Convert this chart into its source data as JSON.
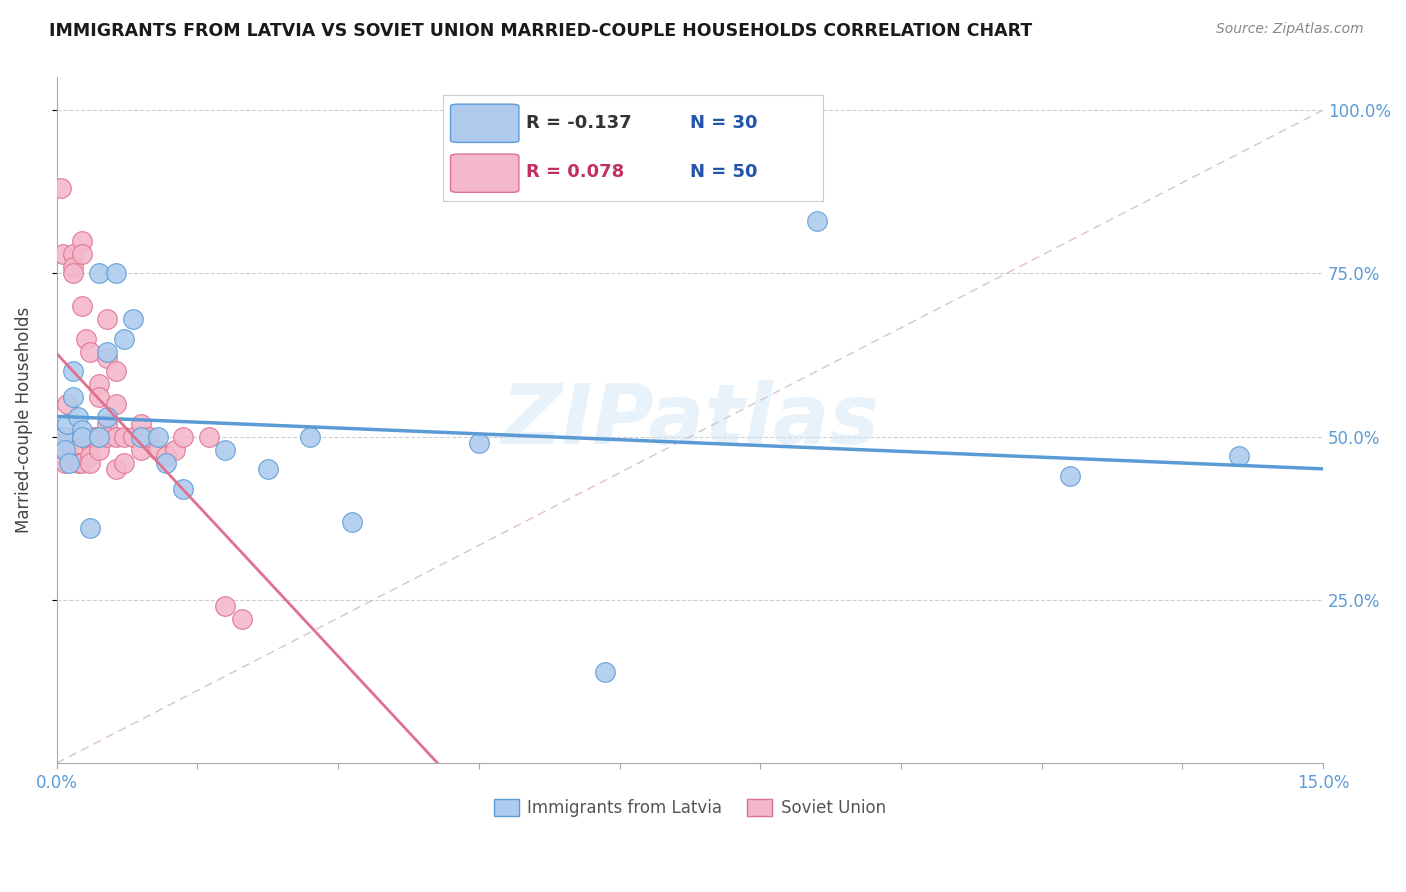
{
  "title": "IMMIGRANTS FROM LATVIA VS SOVIET UNION MARRIED-COUPLE HOUSEHOLDS CORRELATION CHART",
  "source": "Source: ZipAtlas.com",
  "ylabel_label": "Married-couple Households",
  "ytick_labels": [
    "25.0%",
    "50.0%",
    "75.0%",
    "100.0%"
  ],
  "ytick_values": [
    0.25,
    0.5,
    0.75,
    1.0
  ],
  "xlim": [
    0.0,
    0.15
  ],
  "ylim": [
    0.0,
    1.05
  ],
  "watermark": "ZIPatlas",
  "latvia_R": -0.137,
  "latvia_N": 30,
  "soviet_R": 0.078,
  "soviet_N": 50,
  "latvia_color": "#aecbee",
  "latvia_edge_color": "#5b9bd5",
  "soviet_color": "#f4b8cb",
  "soviet_edge_color": "#e07090",
  "diagonal_color": "#d8bcc8",
  "latvia_x": [
    0.0008,
    0.001,
    0.0012,
    0.0015,
    0.002,
    0.002,
    0.0025,
    0.003,
    0.003,
    0.004,
    0.005,
    0.005,
    0.006,
    0.006,
    0.007,
    0.008,
    0.009,
    0.01,
    0.012,
    0.013,
    0.015,
    0.02,
    0.025,
    0.03,
    0.035,
    0.05,
    0.065,
    0.09,
    0.12,
    0.14
  ],
  "latvia_y": [
    0.5,
    0.48,
    0.52,
    0.46,
    0.56,
    0.6,
    0.53,
    0.51,
    0.5,
    0.36,
    0.75,
    0.5,
    0.53,
    0.63,
    0.75,
    0.65,
    0.68,
    0.5,
    0.5,
    0.46,
    0.42,
    0.48,
    0.45,
    0.5,
    0.37,
    0.49,
    0.14,
    0.83,
    0.44,
    0.47
  ],
  "soviet_x": [
    0.0005,
    0.0006,
    0.0008,
    0.001,
    0.001,
    0.001,
    0.0012,
    0.0015,
    0.0015,
    0.002,
    0.002,
    0.002,
    0.002,
    0.0025,
    0.003,
    0.003,
    0.003,
    0.003,
    0.0035,
    0.004,
    0.004,
    0.004,
    0.004,
    0.004,
    0.0045,
    0.005,
    0.005,
    0.005,
    0.005,
    0.006,
    0.006,
    0.006,
    0.006,
    0.007,
    0.007,
    0.007,
    0.007,
    0.008,
    0.008,
    0.009,
    0.01,
    0.01,
    0.011,
    0.012,
    0.013,
    0.014,
    0.015,
    0.018,
    0.02,
    0.022
  ],
  "soviet_y": [
    0.88,
    0.5,
    0.78,
    0.48,
    0.47,
    0.46,
    0.55,
    0.5,
    0.49,
    0.78,
    0.76,
    0.75,
    0.48,
    0.46,
    0.8,
    0.78,
    0.7,
    0.46,
    0.65,
    0.63,
    0.5,
    0.49,
    0.47,
    0.46,
    0.5,
    0.58,
    0.56,
    0.5,
    0.48,
    0.68,
    0.62,
    0.52,
    0.5,
    0.6,
    0.55,
    0.5,
    0.45,
    0.5,
    0.46,
    0.5,
    0.52,
    0.48,
    0.5,
    0.48,
    0.47,
    0.48,
    0.5,
    0.5,
    0.24,
    0.22
  ]
}
